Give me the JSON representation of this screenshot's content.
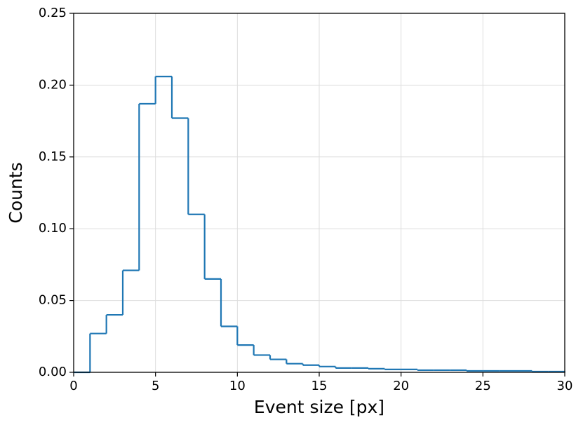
{
  "chart_data": {
    "type": "histogram",
    "histtype": "step",
    "color": "#1f77b4",
    "xlabel": "Event size [px]",
    "ylabel": "Counts",
    "bins": [
      0,
      1,
      2,
      3,
      4,
      5,
      6,
      7,
      8,
      9,
      10,
      11,
      12,
      13,
      14,
      15,
      16,
      17,
      18,
      19,
      20,
      21,
      22,
      23,
      24,
      25,
      26,
      27,
      28,
      29,
      30
    ],
    "values": [
      0,
      0.027,
      0.04,
      0.071,
      0.187,
      0.206,
      0.177,
      0.11,
      0.065,
      0.032,
      0.019,
      0.012,
      0.009,
      0.006,
      0.005,
      0.004,
      0.003,
      0.003,
      0.0025,
      0.002,
      0.002,
      0.0015,
      0.0015,
      0.0015,
      0.001,
      0.001,
      0.001,
      0.001,
      0.0005,
      0.0005
    ],
    "xlim": [
      0,
      30
    ],
    "xticks": [
      0,
      5,
      10,
      15,
      20,
      25,
      30
    ],
    "ylim": [
      0,
      0.25
    ],
    "yticks": [
      {
        "value": 0,
        "label": "0.00"
      },
      {
        "value": 0.05,
        "label": "0.05"
      },
      {
        "value": 0.1,
        "label": "0.10"
      },
      {
        "value": 0.15,
        "label": "0.15"
      },
      {
        "value": 0.2,
        "label": "0.20"
      },
      {
        "value": 0.25,
        "label": "0.25"
      }
    ],
    "grid": true
  }
}
